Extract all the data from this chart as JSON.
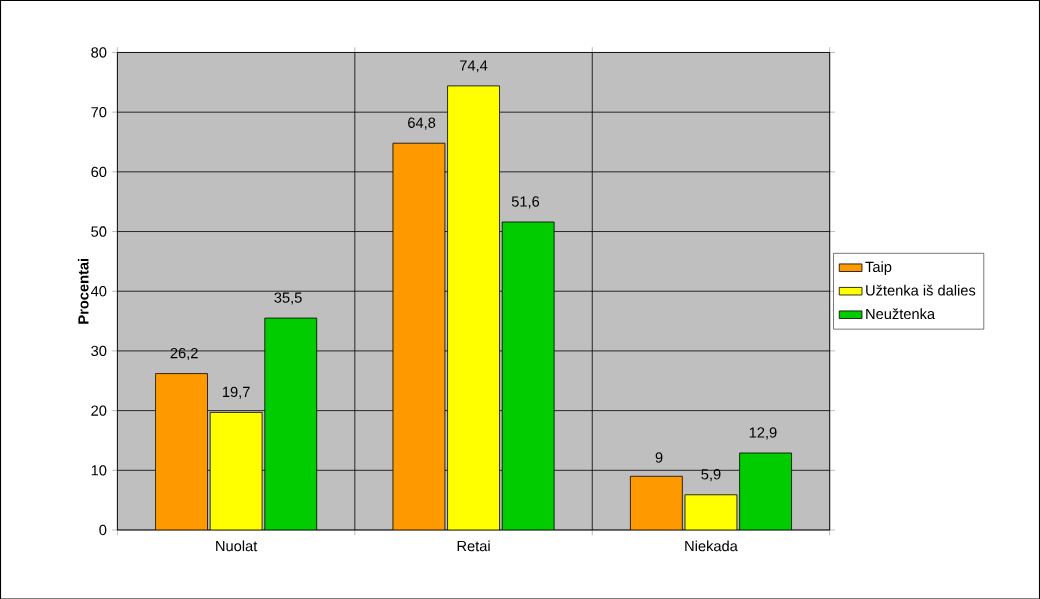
{
  "chart_data": {
    "type": "bar",
    "ylabel": "Procentai",
    "categories": [
      "Nuolat",
      "Retai",
      "Niekada"
    ],
    "series": [
      {
        "name": "Taip",
        "color": "#ff9900",
        "values": [
          26.2,
          64.8,
          9
        ],
        "value_labels": [
          "26,2",
          "64,8",
          "9"
        ]
      },
      {
        "name": "Užtenka iš dalies",
        "color": "#ffff00",
        "values": [
          19.7,
          74.4,
          5.9
        ],
        "value_labels": [
          "19,7",
          "74,4",
          "5,9"
        ]
      },
      {
        "name": "Neužtenka",
        "color": "#00cc00",
        "values": [
          35.5,
          51.6,
          12.9
        ],
        "value_labels": [
          "35,5",
          "51,6",
          "12,9"
        ]
      }
    ],
    "ylim": [
      0,
      80
    ],
    "yticks": [
      0,
      10,
      20,
      30,
      40,
      50,
      60,
      70,
      80
    ],
    "grid": true,
    "legend": "right"
  }
}
